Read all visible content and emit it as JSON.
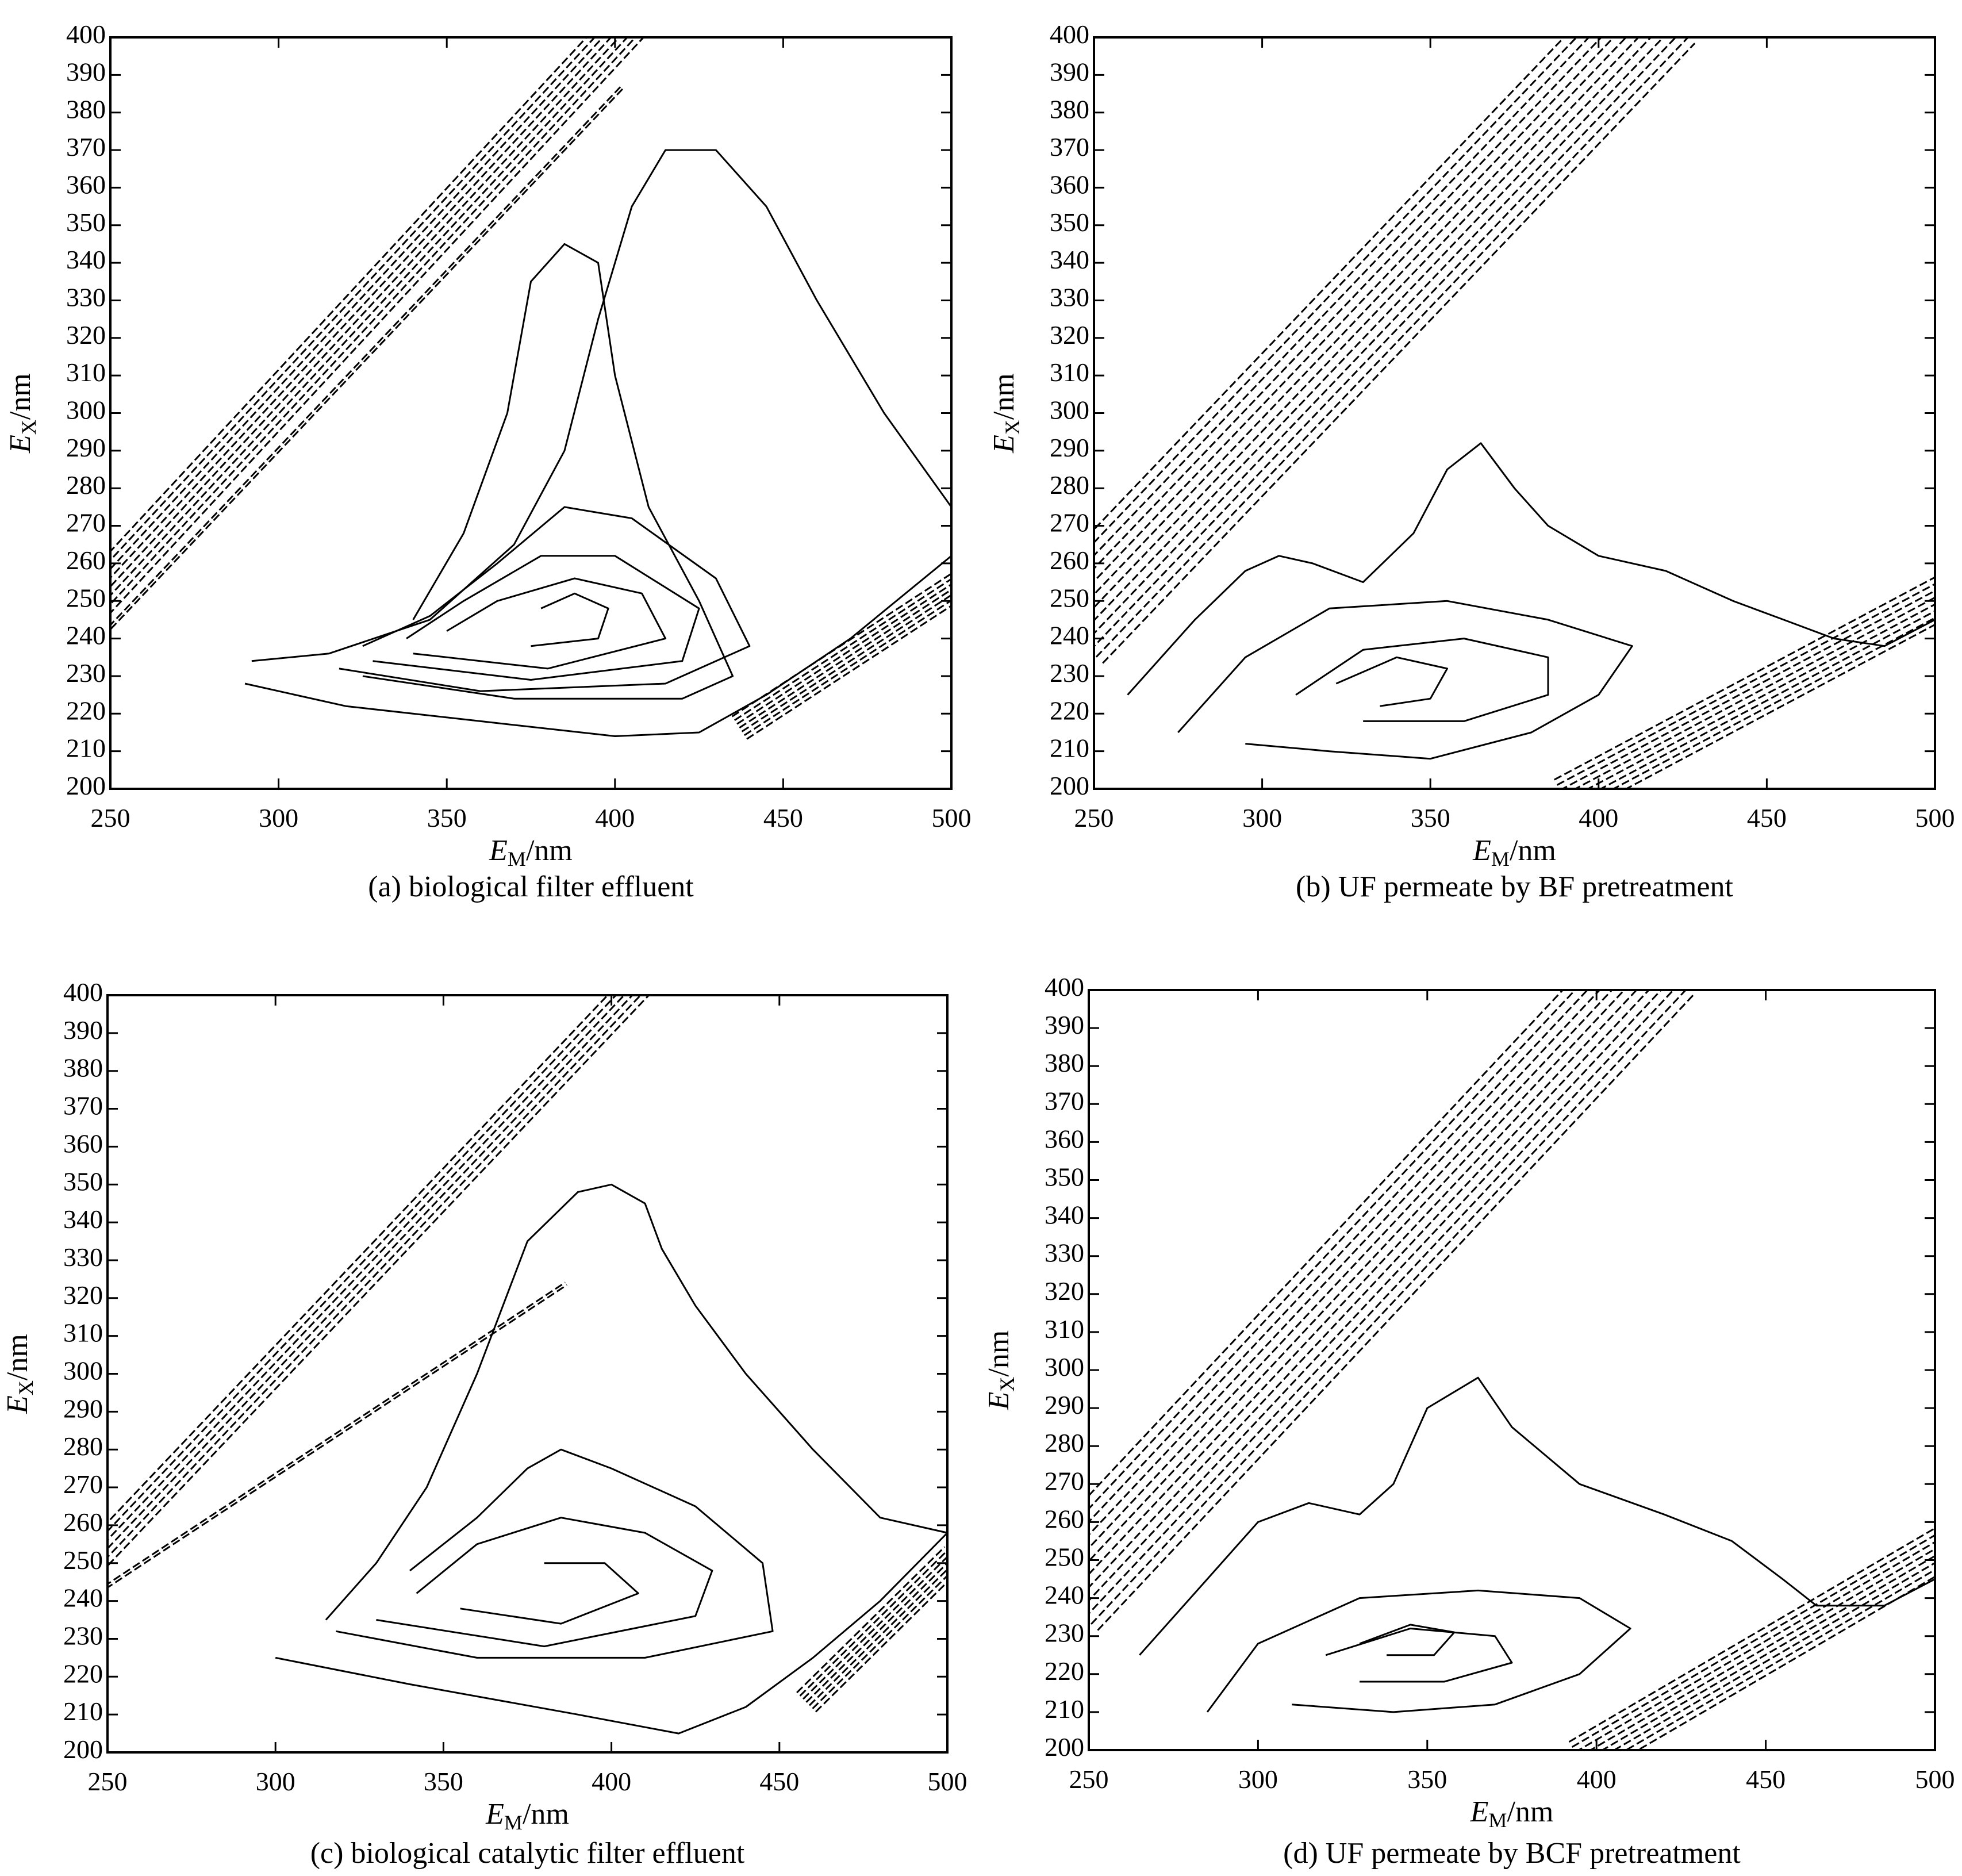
{
  "chart_data": [
    {
      "type": "contour",
      "caption": "(a) biological filter effluent",
      "xlabel": {
        "main": "E",
        "sub": "M",
        "unit": "/nm"
      },
      "ylabel": {
        "main": "E",
        "sub": "X",
        "unit": "/nm"
      },
      "xlim": [
        250,
        500
      ],
      "ylim": [
        200,
        400
      ],
      "xticks": [
        "250",
        "300",
        "350",
        "400",
        "450",
        "500"
      ],
      "yticks": [
        "200",
        "210",
        "220",
        "230",
        "240",
        "250",
        "260",
        "270",
        "280",
        "290",
        "300",
        "310",
        "320",
        "330",
        "340",
        "350",
        "360",
        "370",
        "380",
        "390",
        "400"
      ],
      "scatter_bands": [
        {
          "from": [
            250,
            255
          ],
          "to": [
            400,
            400
          ],
          "levels": 8,
          "spread": 4
        },
        {
          "from": [
            250,
            243
          ],
          "to": [
            395,
            380
          ],
          "levels": 2,
          "spread": 2
        },
        {
          "from": [
            440,
            218
          ],
          "to": [
            500,
            253
          ],
          "levels": 7,
          "spread": 3
        }
      ],
      "contours": [
        [
          [
            290,
            228
          ],
          [
            320,
            222
          ],
          [
            360,
            218
          ],
          [
            400,
            214
          ],
          [
            425,
            215
          ],
          [
            445,
            225
          ],
          [
            470,
            240
          ],
          [
            500,
            262
          ],
          [
            500,
            275
          ],
          [
            480,
            300
          ],
          [
            460,
            330
          ],
          [
            445,
            355
          ],
          [
            430,
            370
          ],
          [
            415,
            370
          ],
          [
            405,
            355
          ],
          [
            395,
            325
          ],
          [
            385,
            290
          ],
          [
            370,
            265
          ],
          [
            345,
            245
          ],
          [
            315,
            236
          ],
          [
            292,
            234
          ]
        ],
        [
          [
            325,
            230
          ],
          [
            370,
            224
          ],
          [
            420,
            224
          ],
          [
            435,
            230
          ],
          [
            425,
            250
          ],
          [
            410,
            275
          ],
          [
            400,
            310
          ],
          [
            395,
            340
          ],
          [
            385,
            345
          ],
          [
            375,
            335
          ],
          [
            368,
            300
          ],
          [
            355,
            268
          ],
          [
            340,
            245
          ]
        ],
        [
          [
            318,
            232
          ],
          [
            360,
            226
          ],
          [
            415,
            228
          ],
          [
            440,
            238
          ],
          [
            430,
            256
          ],
          [
            405,
            272
          ],
          [
            385,
            275
          ],
          [
            365,
            260
          ],
          [
            345,
            246
          ],
          [
            325,
            238
          ]
        ],
        [
          [
            328,
            234
          ],
          [
            375,
            229
          ],
          [
            420,
            234
          ],
          [
            425,
            248
          ],
          [
            400,
            262
          ],
          [
            378,
            262
          ],
          [
            355,
            250
          ],
          [
            338,
            240
          ]
        ],
        [
          [
            340,
            236
          ],
          [
            380,
            232
          ],
          [
            415,
            240
          ],
          [
            408,
            252
          ],
          [
            388,
            256
          ],
          [
            365,
            250
          ],
          [
            350,
            242
          ]
        ],
        [
          [
            375,
            238
          ],
          [
            395,
            240
          ],
          [
            398,
            248
          ],
          [
            388,
            252
          ],
          [
            378,
            248
          ]
        ]
      ]
    },
    {
      "type": "contour",
      "caption": "(b) UF permeate by BF pretreatment",
      "xlabel": {
        "main": "E",
        "sub": "M",
        "unit": "/nm"
      },
      "ylabel": {
        "main": "E",
        "sub": "X",
        "unit": "/nm"
      },
      "xlim": [
        250,
        500
      ],
      "ylim": [
        200,
        400
      ],
      "xticks": [
        "250",
        "300",
        "350",
        "400",
        "450",
        "500"
      ],
      "yticks": [
        "200",
        "210",
        "220",
        "230",
        "240",
        "250",
        "260",
        "270",
        "280",
        "290",
        "300",
        "310",
        "320",
        "330",
        "340",
        "350",
        "360",
        "370",
        "380",
        "390",
        "400"
      ],
      "scatter_bands": [
        {
          "from": [
            250,
            250
          ],
          "to": [
            410,
            400
          ],
          "levels": 12,
          "spread": 6
        },
        {
          "from": [
            395,
            200
          ],
          "to": [
            500,
            250
          ],
          "levels": 8,
          "spread": 4
        }
      ],
      "contours": [
        [
          [
            260,
            225
          ],
          [
            280,
            245
          ],
          [
            295,
            258
          ],
          [
            305,
            262
          ],
          [
            315,
            260
          ],
          [
            330,
            255
          ],
          [
            345,
            268
          ],
          [
            355,
            285
          ],
          [
            365,
            292
          ],
          [
            375,
            280
          ],
          [
            385,
            270
          ],
          [
            400,
            262
          ],
          [
            420,
            258
          ],
          [
            440,
            250
          ],
          [
            455,
            245
          ],
          [
            470,
            240
          ],
          [
            485,
            238
          ],
          [
            500,
            245
          ]
        ],
        [
          [
            275,
            215
          ],
          [
            295,
            235
          ],
          [
            320,
            248
          ],
          [
            355,
            250
          ],
          [
            385,
            245
          ],
          [
            410,
            238
          ],
          [
            400,
            225
          ],
          [
            380,
            215
          ],
          [
            350,
            208
          ],
          [
            320,
            210
          ],
          [
            295,
            212
          ]
        ],
        [
          [
            310,
            225
          ],
          [
            330,
            237
          ],
          [
            360,
            240
          ],
          [
            385,
            235
          ],
          [
            385,
            225
          ],
          [
            360,
            218
          ],
          [
            330,
            218
          ]
        ],
        [
          [
            322,
            228
          ],
          [
            340,
            235
          ],
          [
            355,
            232
          ],
          [
            350,
            224
          ],
          [
            335,
            222
          ]
        ]
      ]
    },
    {
      "type": "contour",
      "caption": "(c) biological catalytic filter effluent",
      "xlabel": {
        "main": "E",
        "sub": "M",
        "unit": "/nm"
      },
      "ylabel": {
        "main": "E",
        "sub": "X",
        "unit": "/nm"
      },
      "xlim": [
        250,
        500
      ],
      "ylim": [
        200,
        400
      ],
      "xticks": [
        "250",
        "300",
        "350",
        "400",
        "450",
        "500"
      ],
      "yticks": [
        "200",
        "210",
        "220",
        "230",
        "240",
        "250",
        "260",
        "270",
        "280",
        "290",
        "300",
        "310",
        "320",
        "330",
        "340",
        "350",
        "360",
        "370",
        "380",
        "390",
        "400"
      ],
      "scatter_bands": [
        {
          "from": [
            250,
            255
          ],
          "to": [
            405,
            400
          ],
          "levels": 6,
          "spread": 4
        },
        {
          "from": [
            250,
            244
          ],
          "to": [
            380,
            320
          ],
          "levels": 2,
          "spread": 2
        },
        {
          "from": [
            460,
            215
          ],
          "to": [
            500,
            250
          ],
          "levels": 7,
          "spread": 3
        }
      ],
      "contours": [
        [
          [
            300,
            225
          ],
          [
            340,
            218
          ],
          [
            390,
            210
          ],
          [
            420,
            205
          ],
          [
            440,
            212
          ],
          [
            460,
            225
          ],
          [
            480,
            240
          ],
          [
            500,
            258
          ],
          [
            480,
            262
          ],
          [
            460,
            280
          ],
          [
            440,
            300
          ],
          [
            425,
            318
          ],
          [
            415,
            333
          ],
          [
            410,
            345
          ],
          [
            400,
            350
          ],
          [
            390,
            348
          ],
          [
            375,
            335
          ],
          [
            360,
            300
          ],
          [
            345,
            270
          ],
          [
            330,
            250
          ],
          [
            315,
            235
          ]
        ],
        [
          [
            318,
            232
          ],
          [
            360,
            225
          ],
          [
            410,
            225
          ],
          [
            448,
            232
          ],
          [
            445,
            250
          ],
          [
            425,
            265
          ],
          [
            400,
            275
          ],
          [
            385,
            280
          ],
          [
            375,
            275
          ],
          [
            360,
            262
          ],
          [
            340,
            248
          ]
        ],
        [
          [
            330,
            235
          ],
          [
            380,
            228
          ],
          [
            425,
            236
          ],
          [
            430,
            248
          ],
          [
            410,
            258
          ],
          [
            385,
            262
          ],
          [
            360,
            255
          ],
          [
            342,
            242
          ]
        ],
        [
          [
            355,
            238
          ],
          [
            385,
            234
          ],
          [
            408,
            242
          ],
          [
            398,
            250
          ],
          [
            380,
            250
          ]
        ]
      ]
    },
    {
      "type": "contour",
      "caption": "(d) UF permeate by BCF pretreatment",
      "xlabel": {
        "main": "E",
        "sub": "M",
        "unit": "/nm"
      },
      "ylabel": {
        "main": "E",
        "sub": "X",
        "unit": "/nm"
      },
      "xlim": [
        250,
        500
      ],
      "ylim": [
        200,
        400
      ],
      "xticks": [
        "250",
        "300",
        "350",
        "400",
        "450",
        "500"
      ],
      "yticks": [
        "200",
        "210",
        "220",
        "230",
        "240",
        "250",
        "260",
        "270",
        "280",
        "290",
        "300",
        "310",
        "320",
        "330",
        "340",
        "350",
        "360",
        "370",
        "380",
        "390",
        "400"
      ],
      "scatter_bands": [
        {
          "from": [
            250,
            248
          ],
          "to": [
            410,
            400
          ],
          "levels": 12,
          "spread": 6
        },
        {
          "from": [
            400,
            200
          ],
          "to": [
            500,
            252
          ],
          "levels": 8,
          "spread": 4
        }
      ],
      "contours": [
        [
          [
            265,
            225
          ],
          [
            285,
            245
          ],
          [
            300,
            260
          ],
          [
            315,
            265
          ],
          [
            330,
            262
          ],
          [
            340,
            270
          ],
          [
            350,
            290
          ],
          [
            365,
            298
          ],
          [
            375,
            285
          ],
          [
            395,
            270
          ],
          [
            420,
            262
          ],
          [
            440,
            255
          ],
          [
            455,
            245
          ],
          [
            465,
            238
          ],
          [
            485,
            238
          ],
          [
            500,
            245
          ]
        ],
        [
          [
            285,
            210
          ],
          [
            300,
            228
          ],
          [
            330,
            240
          ],
          [
            365,
            242
          ],
          [
            395,
            240
          ],
          [
            410,
            232
          ],
          [
            395,
            220
          ],
          [
            370,
            212
          ],
          [
            340,
            210
          ],
          [
            310,
            212
          ]
        ],
        [
          [
            320,
            225
          ],
          [
            345,
            232
          ],
          [
            370,
            230
          ],
          [
            375,
            223
          ],
          [
            355,
            218
          ],
          [
            330,
            218
          ]
        ],
        [
          [
            330,
            228
          ],
          [
            345,
            233
          ],
          [
            358,
            231
          ],
          [
            352,
            225
          ],
          [
            338,
            225
          ]
        ]
      ]
    }
  ]
}
